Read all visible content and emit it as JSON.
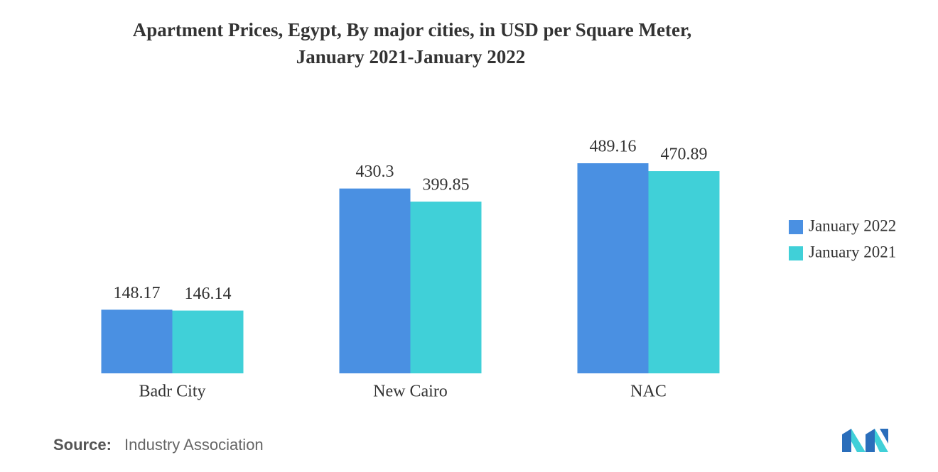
{
  "chart_data": {
    "type": "bar",
    "title": [
      "Apartment Prices, Egypt, By major cities, in USD per Square Meter,",
      "January 2021-January 2022"
    ],
    "categories": [
      "Badr City",
      "New Cairo",
      "NAC"
    ],
    "series": [
      {
        "name": "January 2022",
        "color": "#4a90e2",
        "values": [
          148.17,
          430.3,
          489.16
        ]
      },
      {
        "name": "January 2021",
        "color": "#40d0d8",
        "values": [
          146.14,
          399.85,
          470.89
        ]
      }
    ],
    "legend": "right",
    "source": {
      "label": "Source:",
      "text": "Industry Association"
    }
  }
}
